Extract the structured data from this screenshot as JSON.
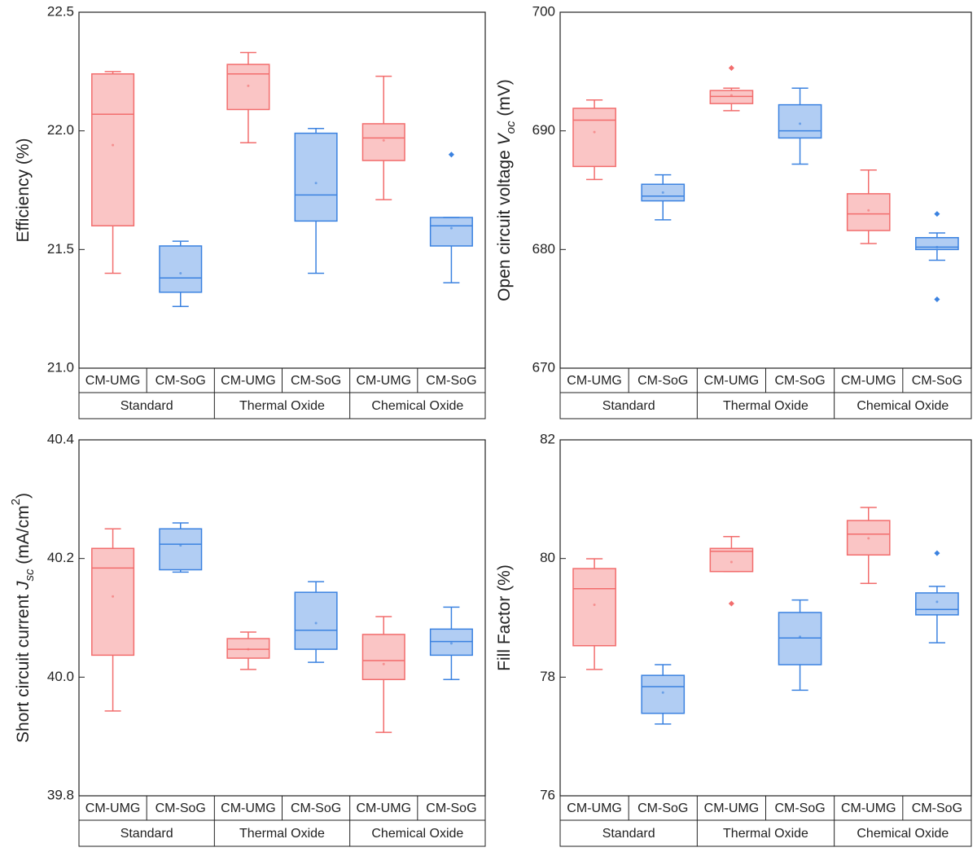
{
  "chart_data": [
    {
      "type": "box",
      "ylabel": [
        {
          "text": "Efficiency (%)"
        }
      ],
      "ylim": [
        21.0,
        22.5
      ],
      "yticks": [
        {
          "value": 21.0,
          "label": "21.0"
        },
        21.5,
        {
          "value": 22.0,
          "label": "22.0"
        },
        22.5
      ],
      "categories": [
        "CM-UMG",
        "CM-SoG",
        "CM-UMG",
        "CM-SoG",
        "CM-UMG",
        "CM-SoG"
      ],
      "groups": [
        "Standard",
        "Thermal Oxide",
        "Chemical Oxide"
      ],
      "boxes": [
        {
          "color": "#f26d6d",
          "min": 21.4,
          "q1": 21.6,
          "median": 22.07,
          "q3": 22.24,
          "max": 22.25,
          "mean": 21.94,
          "outliers": []
        },
        {
          "color": "#3b82e0",
          "min": 21.26,
          "q1": 21.32,
          "median": 21.38,
          "q3": 21.515,
          "max": 21.535,
          "mean": 21.4,
          "outliers": []
        },
        {
          "color": "#f26d6d",
          "min": 21.95,
          "q1": 22.09,
          "median": 22.24,
          "q3": 22.28,
          "max": 22.33,
          "mean": 22.19,
          "outliers": []
        },
        {
          "color": "#3b82e0",
          "min": 21.4,
          "q1": 21.62,
          "median": 21.73,
          "q3": 21.99,
          "max": 22.01,
          "mean": 21.78,
          "outliers": []
        },
        {
          "color": "#f26d6d",
          "min": 21.71,
          "q1": 21.875,
          "median": 21.97,
          "q3": 22.03,
          "max": 22.23,
          "mean": 21.96,
          "outliers": []
        },
        {
          "color": "#3b82e0",
          "min": 21.36,
          "q1": 21.515,
          "median": 21.6,
          "q3": 21.635,
          "max": 21.635,
          "mean": 21.59,
          "outliers": [
            21.9
          ]
        }
      ]
    },
    {
      "type": "box",
      "ylabel": [
        {
          "text": "Open circuit voltage "
        },
        {
          "text": "V",
          "style": "italic"
        },
        {
          "text": "oc",
          "style": "italic-sub"
        },
        {
          "text": " (mV)"
        }
      ],
      "ylim": [
        670,
        700
      ],
      "yticks": [
        670,
        680,
        690,
        700
      ],
      "categories": [
        "CM-UMG",
        "CM-SoG",
        "CM-UMG",
        "CM-SoG",
        "CM-UMG",
        "CM-SoG"
      ],
      "groups": [
        "Standard",
        "Thermal Oxide",
        "Chemical Oxide"
      ],
      "boxes": [
        {
          "color": "#f26d6d",
          "min": 685.9,
          "q1": 687.0,
          "median": 690.9,
          "q3": 691.9,
          "max": 692.6,
          "mean": 689.9,
          "outliers": []
        },
        {
          "color": "#3b82e0",
          "min": 682.5,
          "q1": 684.1,
          "median": 684.5,
          "q3": 685.5,
          "max": 686.3,
          "mean": 684.8,
          "outliers": []
        },
        {
          "color": "#f26d6d",
          "min": 691.7,
          "q1": 692.3,
          "median": 692.9,
          "q3": 693.4,
          "max": 693.6,
          "mean": 693.0,
          "outliers": [
            695.3
          ]
        },
        {
          "color": "#3b82e0",
          "min": 687.2,
          "q1": 689.4,
          "median": 690.0,
          "q3": 692.2,
          "max": 693.6,
          "mean": 690.6,
          "outliers": []
        },
        {
          "color": "#f26d6d",
          "min": 680.5,
          "q1": 681.6,
          "median": 683.0,
          "q3": 684.7,
          "max": 686.7,
          "mean": 683.3,
          "outliers": []
        },
        {
          "color": "#3b82e0",
          "min": 679.1,
          "q1": 680.0,
          "median": 680.2,
          "q3": 681.0,
          "max": 681.4,
          "mean": 680.2,
          "outliers": [
            683.0,
            675.8
          ]
        }
      ]
    },
    {
      "type": "box",
      "ylabel": [
        {
          "text": "Short circuit current "
        },
        {
          "text": "J",
          "style": "italic"
        },
        {
          "text": "sc",
          "style": "italic-sub"
        },
        {
          "text": " (mA/cm"
        },
        {
          "text": "2",
          "style": "sup"
        },
        {
          "text": ")"
        }
      ],
      "ylim": [
        39.8,
        40.4
      ],
      "yticks": [
        39.8,
        {
          "value": 40.0,
          "label": "40.0"
        },
        40.2,
        40.4
      ],
      "categories": [
        "CM-UMG",
        "CM-SoG",
        "CM-UMG",
        "CM-SoG",
        "CM-UMG",
        "CM-SoG"
      ],
      "groups": [
        "Standard",
        "Thermal Oxide",
        "Chemical Oxide"
      ],
      "boxes": [
        {
          "color": "#f26d6d",
          "min": 39.943,
          "q1": 40.037,
          "median": 40.184,
          "q3": 40.217,
          "max": 40.25,
          "mean": 40.136,
          "outliers": []
        },
        {
          "color": "#3b82e0",
          "min": 40.177,
          "q1": 40.181,
          "median": 40.224,
          "q3": 40.25,
          "max": 40.26,
          "mean": 40.222,
          "outliers": []
        },
        {
          "color": "#f26d6d",
          "min": 40.013,
          "q1": 40.032,
          "median": 40.047,
          "q3": 40.065,
          "max": 40.076,
          "mean": 40.047,
          "outliers": []
        },
        {
          "color": "#3b82e0",
          "min": 40.025,
          "q1": 40.047,
          "median": 40.079,
          "q3": 40.143,
          "max": 40.161,
          "mean": 40.091,
          "outliers": []
        },
        {
          "color": "#f26d6d",
          "min": 39.907,
          "q1": 39.996,
          "median": 40.028,
          "q3": 40.072,
          "max": 40.102,
          "mean": 40.022,
          "outliers": []
        },
        {
          "color": "#3b82e0",
          "min": 39.996,
          "q1": 40.037,
          "median": 40.06,
          "q3": 40.081,
          "max": 40.118,
          "mean": 40.057,
          "outliers": []
        }
      ]
    },
    {
      "type": "box",
      "ylabel": [
        {
          "text": "Fill Factor (%)"
        }
      ],
      "ylim": [
        76,
        82
      ],
      "yticks": [
        76,
        78,
        80,
        82
      ],
      "categories": [
        "CM-UMG",
        "CM-SoG",
        "CM-UMG",
        "CM-SoG",
        "CM-UMG",
        "CM-SoG"
      ],
      "groups": [
        "Standard",
        "Thermal Oxide",
        "Chemical Oxide"
      ],
      "boxes": [
        {
          "color": "#f26d6d",
          "min": 78.13,
          "q1": 78.53,
          "median": 79.49,
          "q3": 79.83,
          "max": 79.995,
          "mean": 79.22,
          "outliers": []
        },
        {
          "color": "#3b82e0",
          "min": 77.21,
          "q1": 77.39,
          "median": 77.84,
          "q3": 78.03,
          "max": 78.21,
          "mean": 77.74,
          "outliers": []
        },
        {
          "color": "#f26d6d",
          "min": 79.78,
          "q1": 79.78,
          "median": 80.12,
          "q3": 80.17,
          "max": 80.37,
          "mean": 79.94,
          "outliers": [
            79.24
          ]
        },
        {
          "color": "#3b82e0",
          "min": 77.78,
          "q1": 78.21,
          "median": 78.66,
          "q3": 79.09,
          "max": 79.3,
          "mean": 78.68,
          "outliers": []
        },
        {
          "color": "#f26d6d",
          "min": 79.58,
          "q1": 80.06,
          "median": 80.41,
          "q3": 80.64,
          "max": 80.86,
          "mean": 80.34,
          "outliers": []
        },
        {
          "color": "#3b82e0",
          "min": 78.58,
          "q1": 79.05,
          "median": 79.14,
          "q3": 79.42,
          "max": 79.53,
          "mean": 79.27,
          "outliers": [
            80.09
          ]
        }
      ]
    }
  ]
}
